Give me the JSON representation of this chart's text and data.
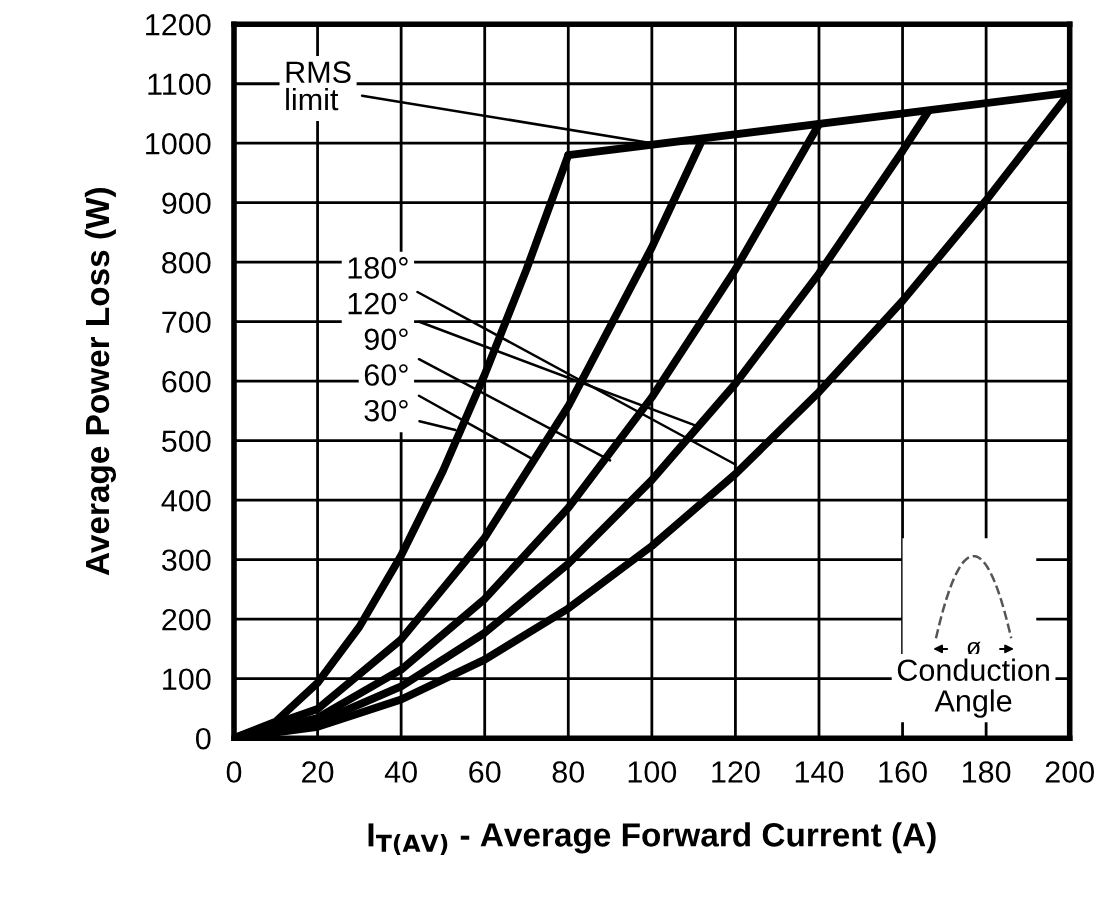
{
  "chart_data": {
    "type": "line",
    "xlabel": "I$_{T(AV)}$ - Average Forward Current (A)",
    "ylabel": "Average Power Loss (W)",
    "series": [
      {
        "color": "#000000",
        "x": [
          0,
          10,
          20,
          30,
          40,
          50,
          60,
          70,
          80
        ],
        "values": [
          0,
          28,
          93,
          187,
          307,
          449,
          611,
          788,
          980
        ]
      },
      {
        "color": "#000000",
        "x": [
          0,
          20,
          40,
          60,
          80,
          100,
          112
        ],
        "values": [
          0,
          49,
          166,
          337,
          558,
          825,
          1005
        ]
      },
      {
        "color": "#000000",
        "x": [
          0,
          20,
          40,
          60,
          80,
          100,
          120,
          140
        ],
        "values": [
          0,
          34,
          115,
          234,
          387,
          573,
          788,
          1032
        ]
      },
      {
        "color": "#000000",
        "x": [
          0,
          20,
          40,
          60,
          80,
          100,
          120,
          140,
          160,
          166
        ],
        "values": [
          0,
          26,
          87,
          177,
          293,
          434,
          596,
          781,
          987,
          1052
        ]
      },
      {
        "color": "#000000",
        "x": [
          0,
          20,
          40,
          60,
          80,
          100,
          120,
          140,
          160,
          180,
          200
        ],
        "values": [
          0,
          19,
          65,
          132,
          218,
          323,
          444,
          582,
          735,
          904,
          1085
        ]
      },
      {
        "color": "#000000",
        "x": [
          80,
          200
        ],
        "values": [
          980,
          1085
        ]
      }
    ],
    "annotations": [
      {
        "text": "RMS\nlimit",
        "x": 100,
        "y": 1000
      },
      {
        "text": "180°",
        "x": 120,
        "y": 460
      },
      {
        "text": "120°",
        "x": 111,
        "y": 524
      },
      {
        "text": "90°",
        "x": 90,
        "y": 467
      },
      {
        "text": "60°",
        "x": 72,
        "y": 467
      },
      {
        "text": "30°",
        "x": 53,
        "y": 518
      },
      "ø",
      "Conduction\nAngle"
    ],
    "xlim": [
      0,
      200
    ],
    "ylim": [
      0,
      1200
    ],
    "xticks": [
      0,
      20,
      40,
      60,
      80,
      100,
      120,
      140,
      160,
      180,
      200
    ],
    "yticks": [
      0,
      100,
      200,
      300,
      400,
      500,
      600,
      700,
      800,
      900,
      1000,
      1100,
      1200
    ],
    "grid": true,
    "marker": "none",
    "line_style": "solid"
  }
}
